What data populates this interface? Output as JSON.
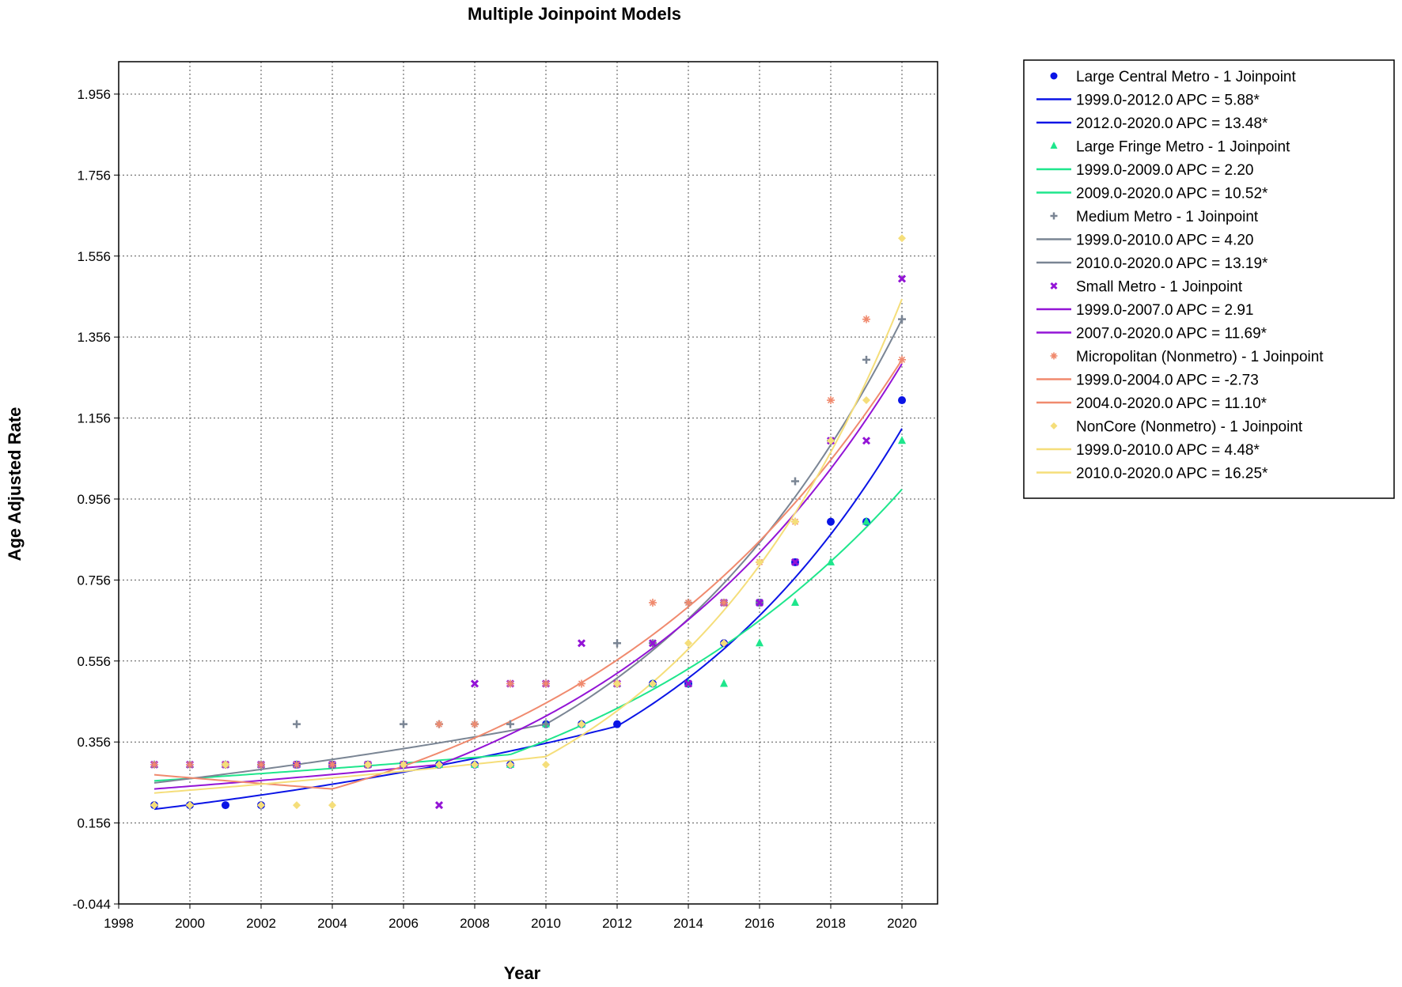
{
  "chart_data": {
    "type": "line",
    "title": "Multiple Joinpoint Models",
    "xlabel": "Year",
    "ylabel": "Age Adjusted Rate",
    "xlim": [
      1998,
      2021
    ],
    "ylim": [
      -0.044,
      2.036
    ],
    "x_ticks": [
      1998,
      2000,
      2002,
      2004,
      2006,
      2008,
      2010,
      2012,
      2014,
      2016,
      2018,
      2020
    ],
    "x_tick_labels": [
      "1998",
      "2000",
      "2002",
      "2004",
      "2006",
      "2008",
      "2010",
      "2012",
      "2014",
      "2016",
      "2018",
      "2020"
    ],
    "y_ticks": [
      -0.044,
      0.156,
      0.356,
      0.556,
      0.756,
      0.956,
      1.156,
      1.356,
      1.556,
      1.756,
      1.956
    ],
    "y_tick_labels": [
      "-0.044",
      "0.156",
      "0.356",
      "0.556",
      "0.756",
      "0.956",
      "1.156",
      "1.356",
      "1.556",
      "1.756",
      "1.956"
    ],
    "grid": true,
    "legend_position": "right",
    "x": [
      1999,
      2000,
      2001,
      2002,
      2003,
      2004,
      2005,
      2006,
      2007,
      2008,
      2009,
      2010,
      2011,
      2012,
      2013,
      2014,
      2015,
      2016,
      2017,
      2018,
      2019,
      2020
    ],
    "series": [
      {
        "name": "Large Central Metro - 1 Joinpoint",
        "marker": "circle",
        "color": "#0a14e6",
        "values": [
          0.2,
          0.2,
          0.2,
          0.2,
          0.3,
          0.3,
          0.3,
          0.3,
          0.3,
          0.3,
          0.3,
          0.4,
          0.4,
          0.4,
          0.5,
          0.5,
          0.6,
          0.7,
          0.8,
          0.9,
          0.9,
          1.2
        ],
        "fit": {
          "start": 0.19,
          "joinpoint": 2012,
          "jp_value": 0.395,
          "end": 1.13
        },
        "segments": [
          {
            "label": "1999.0-2012.0 APC  =  5.88*"
          },
          {
            "label": "2012.0-2020.0 APC  =  13.48*"
          }
        ]
      },
      {
        "name": "Large Fringe Metro - 1 Joinpoint",
        "marker": "triangle",
        "color": "#1ee68c",
        "values": [
          0.3,
          0.3,
          0.3,
          0.3,
          0.3,
          0.3,
          0.3,
          0.3,
          0.3,
          0.3,
          0.3,
          0.4,
          0.4,
          0.5,
          0.5,
          0.5,
          0.5,
          0.6,
          0.7,
          0.8,
          0.9,
          1.1
        ],
        "fit": {
          "start": 0.26,
          "joinpoint": 2009,
          "jp_value": 0.325,
          "end": 0.98
        },
        "segments": [
          {
            "label": "1999.0-2009.0 APC  =  2.20"
          },
          {
            "label": "2009.0-2020.0 APC  =  10.52*"
          }
        ]
      },
      {
        "name": "Medium Metro - 1 Joinpoint",
        "marker": "plus",
        "color": "#7a8594",
        "values": [
          0.2,
          0.2,
          0.3,
          0.3,
          0.4,
          0.3,
          0.3,
          0.4,
          0.4,
          0.4,
          0.4,
          0.4,
          0.4,
          0.6,
          0.6,
          0.7,
          0.7,
          0.7,
          1.0,
          1.1,
          1.3,
          1.4
        ],
        "fit": {
          "start": 0.255,
          "joinpoint": 2010,
          "jp_value": 0.4,
          "end": 1.4
        },
        "segments": [
          {
            "label": "1999.0-2010.0 APC  =  4.20"
          },
          {
            "label": "2010.0-2020.0 APC  =  13.19*"
          }
        ]
      },
      {
        "name": "Small Metro - 1 Joinpoint",
        "marker": "x",
        "color": "#9314d6",
        "values": [
          0.3,
          0.3,
          0.3,
          0.3,
          0.3,
          0.3,
          0.3,
          0.3,
          0.2,
          0.5,
          0.5,
          0.5,
          0.6,
          0.5,
          0.6,
          0.5,
          0.7,
          0.7,
          0.8,
          1.1,
          1.1,
          1.5
        ],
        "fit": {
          "start": 0.24,
          "joinpoint": 2007,
          "jp_value": 0.3,
          "end": 1.29
        },
        "segments": [
          {
            "label": "1999.0-2007.0 APC  =  2.91"
          },
          {
            "label": "2007.0-2020.0 APC  =  11.69*"
          }
        ]
      },
      {
        "name": "Micropolitan (Nonmetro) - 1 Joinpoint",
        "marker": "star",
        "color": "#f08a6e",
        "values": [
          0.3,
          0.3,
          0.3,
          0.3,
          0.3,
          0.3,
          0.3,
          0.3,
          0.4,
          0.4,
          0.5,
          0.5,
          0.5,
          0.5,
          0.7,
          0.7,
          0.7,
          0.8,
          0.9,
          1.2,
          1.4,
          1.3
        ],
        "fit": {
          "start": 0.275,
          "joinpoint": 2004,
          "jp_value": 0.24,
          "end": 1.3
        },
        "segments": [
          {
            "label": "1999.0-2004.0 APC  =  -2.73"
          },
          {
            "label": "2004.0-2020.0 APC  =  11.10*"
          }
        ]
      },
      {
        "name": "NonCore (Nonmetro) - 1 Joinpoint",
        "marker": "diamond",
        "color": "#f5de7a",
        "values": [
          0.2,
          0.2,
          0.3,
          0.2,
          0.2,
          0.2,
          0.3,
          0.3,
          0.3,
          0.3,
          0.3,
          0.3,
          0.4,
          0.5,
          0.5,
          0.6,
          0.6,
          0.8,
          0.9,
          1.1,
          1.2,
          1.6
        ],
        "fit": {
          "start": 0.23,
          "joinpoint": 2010,
          "jp_value": 0.32,
          "end": 1.45
        },
        "segments": [
          {
            "label": "1999.0-2010.0 APC  =  4.48*"
          },
          {
            "label": "2010.0-2020.0 APC  =  16.25*"
          }
        ]
      }
    ]
  }
}
